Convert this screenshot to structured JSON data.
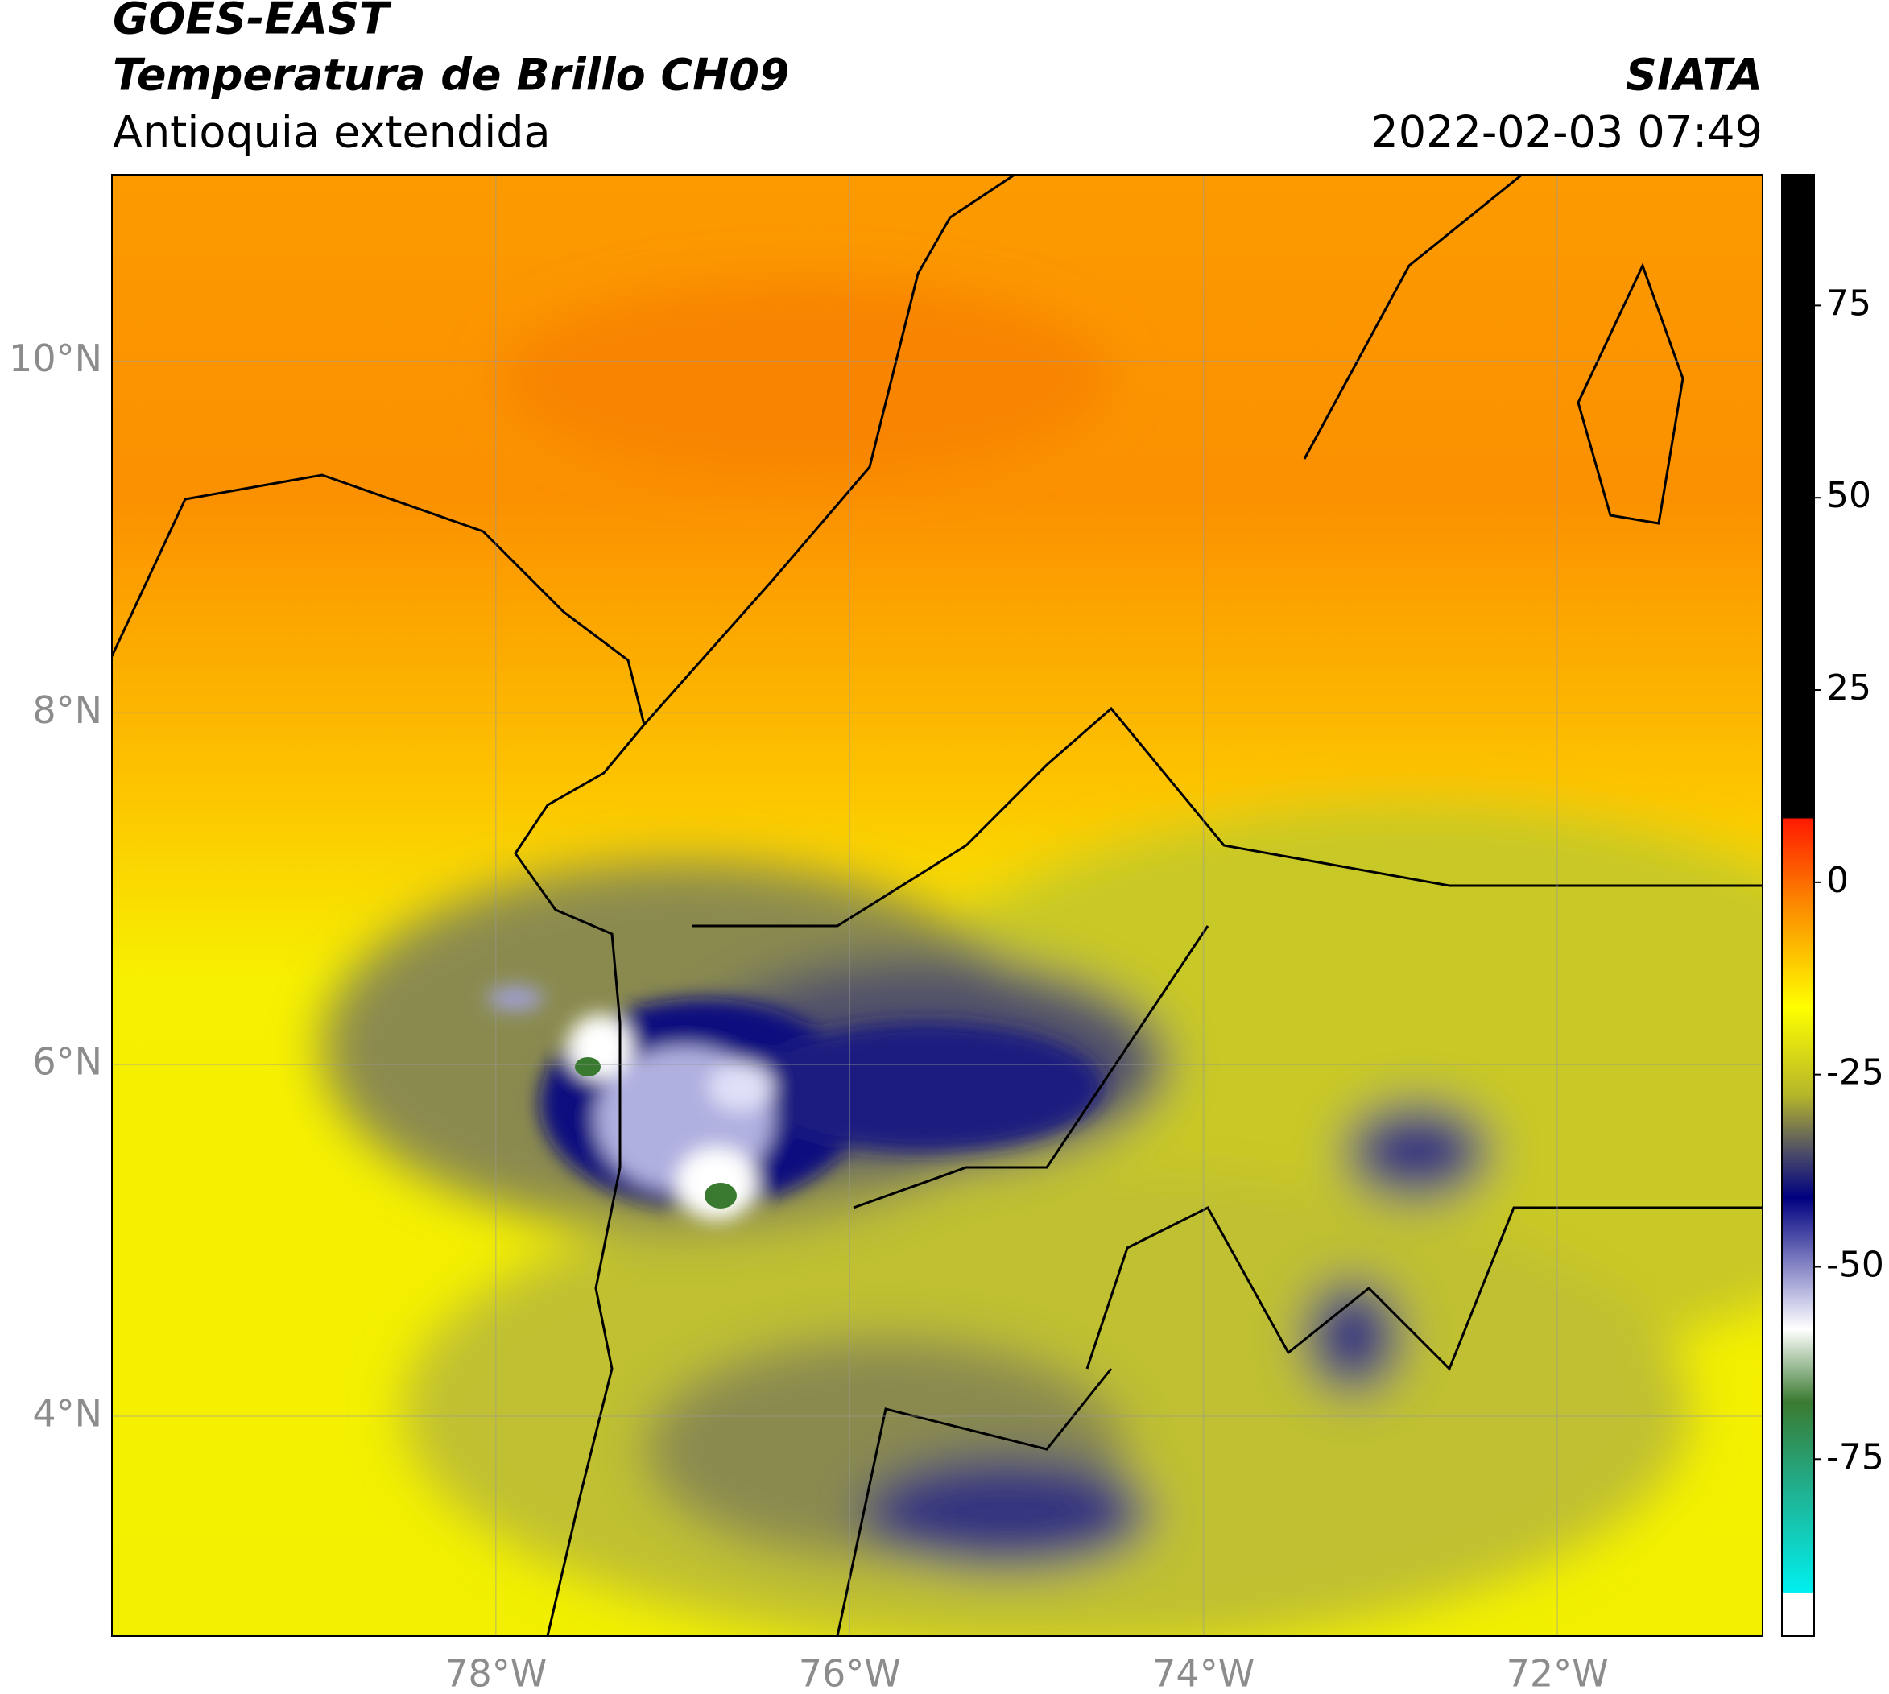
{
  "map": {
    "title": "GOES-EAST",
    "subtitle": "Temperatura de Brillo CH09",
    "region": "Antioquia extendida",
    "source": "SIATA",
    "timestamp": "2022-02-03 07:49",
    "xlim": [
      -80.17,
      -70.84
    ],
    "ylim": [
      2.75,
      11.06
    ],
    "xticks": [
      {
        "value": -78,
        "label": "78°W"
      },
      {
        "value": -76,
        "label": "76°W"
      },
      {
        "value": -74,
        "label": "74°W"
      },
      {
        "value": -72,
        "label": "72°W"
      }
    ],
    "yticks": [
      {
        "value": 4,
        "label": "4°N"
      },
      {
        "value": 6,
        "label": "6°N"
      },
      {
        "value": 8,
        "label": "8°N"
      },
      {
        "value": 10,
        "label": "10°N"
      }
    ],
    "grid": true,
    "colorbar": {
      "lim": [
        -98,
        92
      ],
      "ticks": [
        75,
        50,
        25,
        0,
        -25,
        -50,
        -75
      ]
    }
  }
}
